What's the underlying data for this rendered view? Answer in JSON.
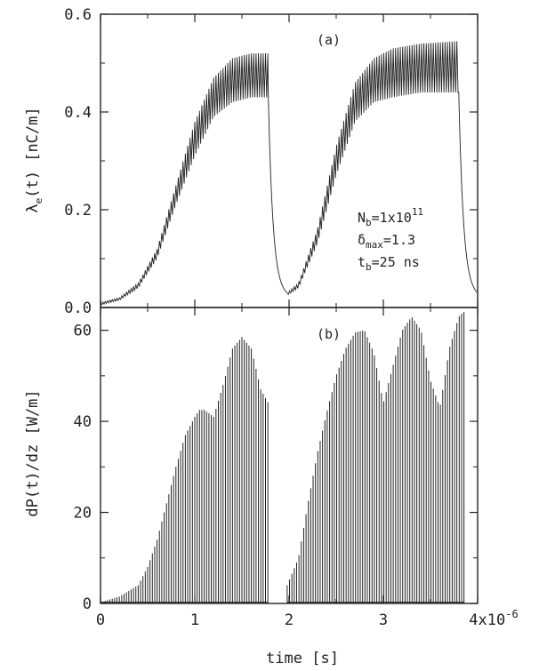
{
  "colors": {
    "ink": "#222222",
    "background": "#ffffff"
  },
  "chart_data": [
    {
      "type": "line",
      "panel_label": "(a)",
      "ylabel": {
        "main": "λ",
        "sub": "e",
        "rest": "(t) [nC/m]"
      },
      "xlim": [
        0,
        4e-06
      ],
      "ylim": [
        0,
        0.6
      ],
      "y_ticks": [
        {
          "value": 0.0,
          "label": "0.0"
        },
        {
          "value": 0.2,
          "label": "0.2"
        },
        {
          "value": 0.4,
          "label": "0.4"
        },
        {
          "value": 0.6,
          "label": "0.6"
        }
      ],
      "annotation": {
        "line1": {
          "base": "N",
          "sub": "b",
          "rest": "=1x10",
          "sup": "11"
        },
        "line2": {
          "base": "δ",
          "sub": "max",
          "rest": "=1.3"
        },
        "line3": {
          "base": "t",
          "sub": "b",
          "rest": "=25 ns"
        }
      },
      "series": [
        {
          "style": "oscillating-band",
          "description_points": "envelope of electron line density: rises during bunch train, decays in gap",
          "segments": [
            {
              "x_start": 0.0,
              "x_end": 1.78e-06,
              "upper": [
                [
                  0.0,
                  0.01
                ],
                [
                  2e-07,
                  0.02
                ],
                [
                  4e-07,
                  0.05
                ],
                [
                  6e-07,
                  0.12
                ],
                [
                  8e-07,
                  0.25
                ],
                [
                  1e-06,
                  0.38
                ],
                [
                  1.2e-06,
                  0.47
                ],
                [
                  1.4e-06,
                  0.51
                ],
                [
                  1.6e-06,
                  0.52
                ],
                [
                  1.78e-06,
                  0.52
                ]
              ],
              "lower": [
                [
                  0.0,
                  0.005
                ],
                [
                  2e-07,
                  0.015
                ],
                [
                  4e-07,
                  0.04
                ],
                [
                  6e-07,
                  0.1
                ],
                [
                  8e-07,
                  0.21
                ],
                [
                  1e-06,
                  0.31
                ],
                [
                  1.2e-06,
                  0.39
                ],
                [
                  1.4e-06,
                  0.42
                ],
                [
                  1.6e-06,
                  0.43
                ],
                [
                  1.78e-06,
                  0.43
                ]
              ]
            },
            {
              "x_start": 1.78e-06,
              "x_end": 1.98e-06,
              "decay_from": 0.43,
              "decay_to": 0.03
            },
            {
              "x_start": 1.98e-06,
              "x_end": 3.8e-06,
              "upper": [
                [
                  1.98e-06,
                  0.03
                ],
                [
                  2.1e-06,
                  0.05
                ],
                [
                  2.3e-06,
                  0.16
                ],
                [
                  2.5e-06,
                  0.33
                ],
                [
                  2.7e-06,
                  0.46
                ],
                [
                  2.9e-06,
                  0.51
                ],
                [
                  3.1e-06,
                  0.53
                ],
                [
                  3.4e-06,
                  0.54
                ],
                [
                  3.8e-06,
                  0.545
                ]
              ],
              "lower": [
                [
                  1.98e-06,
                  0.025
                ],
                [
                  2.1e-06,
                  0.04
                ],
                [
                  2.3e-06,
                  0.13
                ],
                [
                  2.5e-06,
                  0.27
                ],
                [
                  2.7e-06,
                  0.38
                ],
                [
                  2.9e-06,
                  0.42
                ],
                [
                  3.1e-06,
                  0.43
                ],
                [
                  3.4e-06,
                  0.44
                ],
                [
                  3.8e-06,
                  0.44
                ]
              ]
            },
            {
              "x_start": 3.8e-06,
              "x_end": 4e-06,
              "decay_from": 0.44,
              "decay_to": 0.03
            }
          ]
        }
      ]
    },
    {
      "type": "bar",
      "panel_label": "(b)",
      "ylabel": "dP(t)/dz [W/m]",
      "xlabel": "time [s]",
      "xlim": [
        0,
        4e-06
      ],
      "ylim": [
        0,
        65
      ],
      "x_ticks": [
        {
          "value": 0,
          "label": "0"
        },
        {
          "value": 1e-06,
          "label": "1"
        },
        {
          "value": 2e-06,
          "label": "2"
        },
        {
          "value": 3e-06,
          "label": "3"
        },
        {
          "value": 4e-06,
          "label": "4x10",
          "sup": "-6"
        }
      ],
      "y_ticks": [
        {
          "value": 0,
          "label": "0"
        },
        {
          "value": 20,
          "label": "20"
        },
        {
          "value": 40,
          "label": "40"
        },
        {
          "value": 60,
          "label": "60"
        }
      ],
      "bunch_spacing": 2.5e-08,
      "envelope": [
        [
          0.0,
          0.3
        ],
        [
          2e-07,
          1.5
        ],
        [
          4e-07,
          4
        ],
        [
          5e-07,
          8
        ],
        [
          6e-07,
          14
        ],
        [
          7e-07,
          22
        ],
        [
          8e-07,
          30
        ],
        [
          9e-07,
          37
        ],
        [
          1e-06,
          41
        ],
        [
          1.05e-06,
          42.5
        ],
        [
          1.1e-06,
          42.5
        ],
        [
          1.2e-06,
          41
        ],
        [
          1.3e-06,
          48
        ],
        [
          1.4e-06,
          56
        ],
        [
          1.5e-06,
          58.5
        ],
        [
          1.6e-06,
          56
        ],
        [
          1.7e-06,
          47
        ],
        [
          1.78e-06,
          44
        ],
        [
          1.98e-06,
          4
        ],
        [
          2.1e-06,
          10
        ],
        [
          2.2e-06,
          22
        ],
        [
          2.3e-06,
          33
        ],
        [
          2.4e-06,
          42
        ],
        [
          2.5e-06,
          50
        ],
        [
          2.6e-06,
          56
        ],
        [
          2.7e-06,
          59.5
        ],
        [
          2.8e-06,
          60
        ],
        [
          2.9e-06,
          55
        ],
        [
          3e-06,
          44
        ],
        [
          3.1e-06,
          52
        ],
        [
          3.2e-06,
          60
        ],
        [
          3.3e-06,
          63
        ],
        [
          3.4e-06,
          60
        ],
        [
          3.5e-06,
          49
        ],
        [
          3.6e-06,
          43
        ],
        [
          3.7e-06,
          56
        ],
        [
          3.8e-06,
          63
        ],
        [
          3.85e-06,
          64
        ]
      ],
      "trains": [
        [
          0.0,
          1.78e-06
        ],
        [
          1.98e-06,
          3.86e-06
        ]
      ]
    }
  ]
}
